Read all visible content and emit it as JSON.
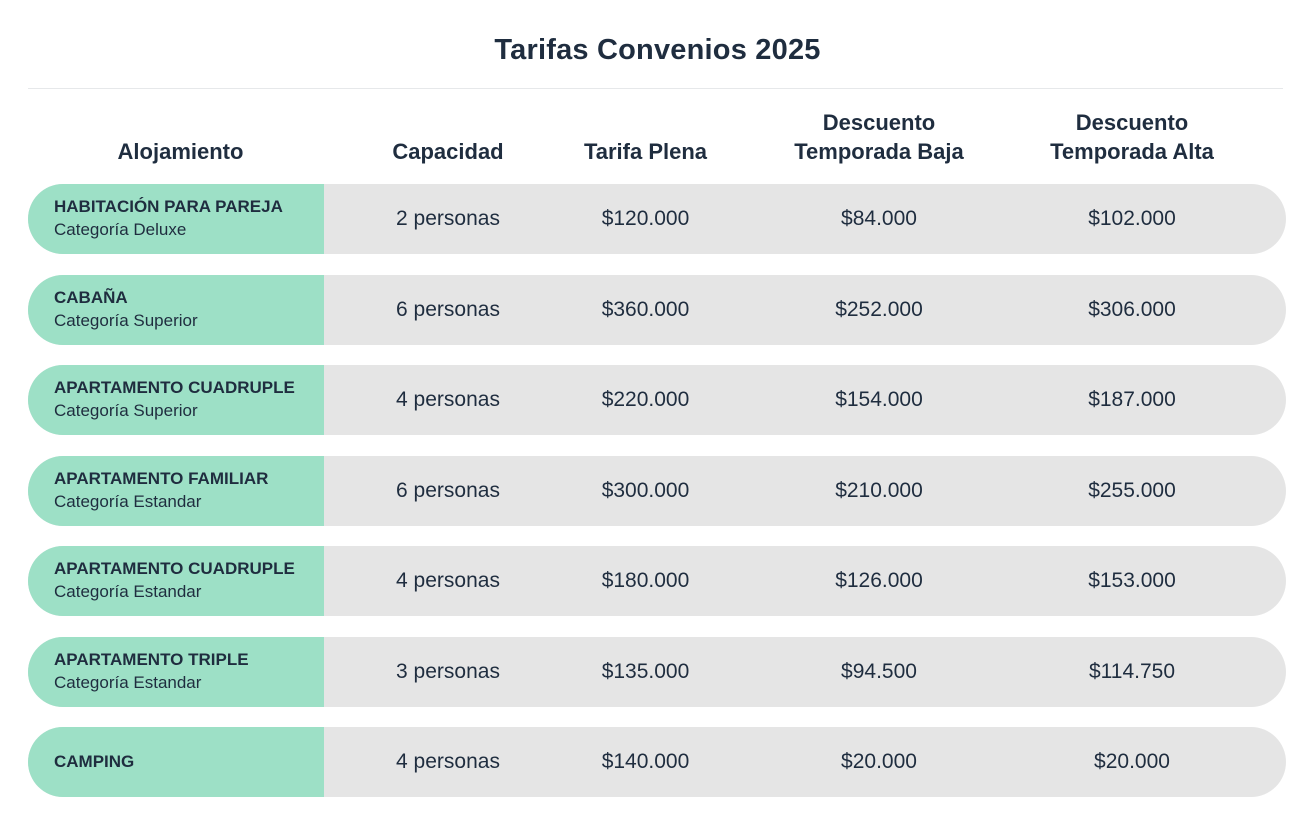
{
  "title": "Tarifas Convenios 2025",
  "columns": [
    "Alojamiento",
    "Capacidad",
    "Tarifa Plena",
    "Descuento Temporada Baja",
    "Descuento Temporada Alta"
  ],
  "header_lines": {
    "col0": "Alojamiento",
    "col1": "Capacidad",
    "col2": "Tarifa Plena",
    "col3_line1": "Descuento",
    "col3_line2": "Temporada Baja",
    "col4_line1": "Descuento",
    "col4_line2": "Temporada Alta"
  },
  "rows": [
    {
      "name": "HABITACIÓN PARA PAREJA",
      "category": "Categoría Deluxe",
      "capacity": "2 personas",
      "full_rate": "$120.000",
      "low_season": "$84.000",
      "high_season": "$102.000"
    },
    {
      "name": "CABAÑA",
      "category": "Categoría Superior",
      "capacity": "6 personas",
      "full_rate": "$360.000",
      "low_season": "$252.000",
      "high_season": "$306.000"
    },
    {
      "name": "APARTAMENTO CUADRUPLE",
      "category": "Categoría Superior",
      "capacity": "4 personas",
      "full_rate": "$220.000",
      "low_season": "$154.000",
      "high_season": "$187.000"
    },
    {
      "name": "APARTAMENTO FAMILIAR",
      "category": "Categoría Estandar",
      "capacity": "6 personas",
      "full_rate": "$300.000",
      "low_season": "$210.000",
      "high_season": "$255.000"
    },
    {
      "name": "APARTAMENTO CUADRUPLE",
      "category": "Categoría Estandar",
      "capacity": "4 personas",
      "full_rate": "$180.000",
      "low_season": "$126.000",
      "high_season": "$153.000"
    },
    {
      "name": "APARTAMENTO TRIPLE",
      "category": "Categoría Estandar",
      "capacity": "3 personas",
      "full_rate": "$135.000",
      "low_season": "$94.500",
      "high_season": "$114.750"
    },
    {
      "name": "CAMPING",
      "category": "",
      "capacity": "4 personas",
      "full_rate": "$140.000",
      "low_season": "$20.000",
      "high_season": "$20.000"
    }
  ],
  "colors": {
    "label_bg": "#9de0c6",
    "row_bg": "#e5e5e5",
    "text": "#1f2d3f"
  }
}
